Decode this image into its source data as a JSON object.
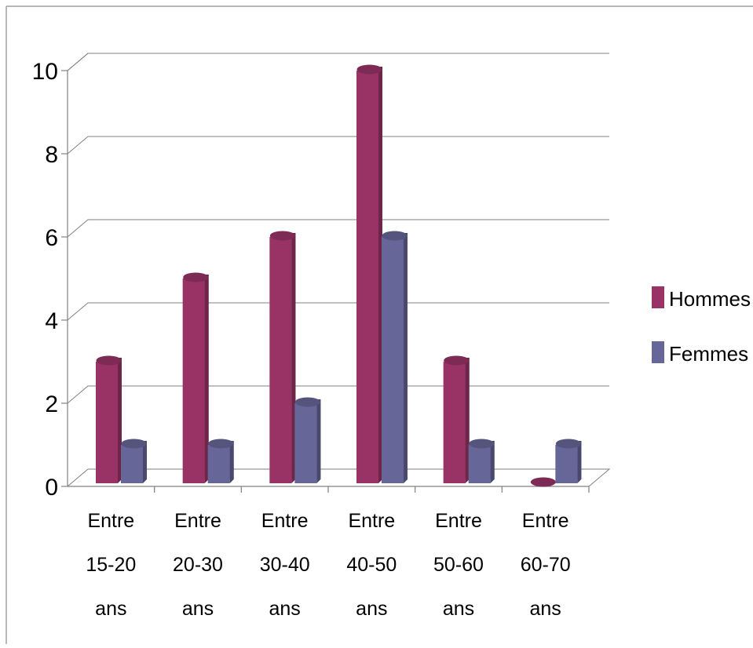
{
  "chart_data": {
    "type": "bar",
    "style": "3d-column",
    "categories": [
      [
        "Entre",
        "15-20",
        "ans"
      ],
      [
        "Entre",
        "20-30",
        "ans"
      ],
      [
        "Entre",
        "30-40",
        "ans"
      ],
      [
        "Entre",
        "40-50",
        "ans"
      ],
      [
        "Entre",
        "50-60",
        "ans"
      ],
      [
        "Entre",
        "60-70",
        "ans"
      ]
    ],
    "series": [
      {
        "name": "Hommes",
        "color": "#993366",
        "values": [
          3,
          5,
          6,
          10,
          3,
          0
        ]
      },
      {
        "name": "Femmes",
        "color": "#666699",
        "values": [
          1,
          1,
          2,
          6,
          1,
          1
        ]
      }
    ],
    "y_ticks": [
      "0",
      "2",
      "4",
      "6",
      "8",
      "10"
    ],
    "ylim": [
      0,
      10
    ],
    "grid": true,
    "legend_position": "right"
  }
}
